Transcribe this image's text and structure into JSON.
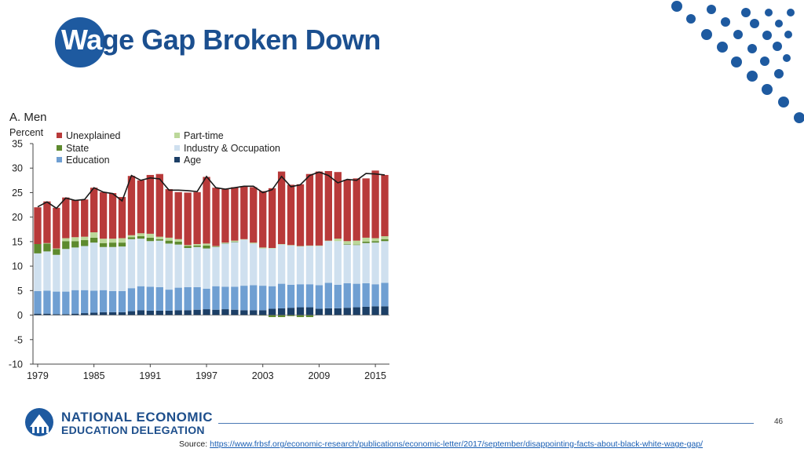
{
  "slide": {
    "title_lead": "Wa",
    "title_rest": "ge Gap Broken Down",
    "page_number": "46",
    "org_line1": "NATIONAL ECONOMIC",
    "org_line2": "EDUCATION DELEGATION",
    "source_label": "Source: ",
    "source_url": "https://www.frbsf.org/economic-research/publications/economic-letter/2017/september/disappointing-facts-about-black-white-wage-gap/"
  },
  "colors": {
    "brand": "#1e5aa0",
    "unexplained": "#b83a3a",
    "part_time": "#bcd89a",
    "state": "#5e8a2e",
    "industry_occupation": "#cfe0ef",
    "education": "#6f9fd2",
    "age": "#1c3f66",
    "total_line": "#1a1a1a"
  },
  "chart_data": {
    "type": "bar",
    "stacked": true,
    "title": "A. Men",
    "ylabel": "Percent",
    "ylim": [
      -10,
      35
    ],
    "yticks": [
      "35",
      "30",
      "25",
      "20",
      "15",
      "10",
      "5",
      "0",
      "-5",
      "-10"
    ],
    "xtick_labels": [
      "1979",
      "1985",
      "1991",
      "1997",
      "2003",
      "2009",
      "2015"
    ],
    "categories": [
      1979,
      1980,
      1981,
      1982,
      1983,
      1984,
      1985,
      1986,
      1987,
      1988,
      1989,
      1990,
      1991,
      1992,
      1993,
      1994,
      1995,
      1996,
      1997,
      1998,
      1999,
      2000,
      2001,
      2002,
      2003,
      2004,
      2005,
      2006,
      2007,
      2008,
      2009,
      2010,
      2011,
      2012,
      2013,
      2014,
      2015,
      2016
    ],
    "legend": [
      {
        "key": "unexplained",
        "label": "Unexplained"
      },
      {
        "key": "part_time",
        "label": "Part-time"
      },
      {
        "key": "state",
        "label": "State"
      },
      {
        "key": "industry_occupation",
        "label": "Industry & Occupation"
      },
      {
        "key": "education",
        "label": "Education"
      },
      {
        "key": "age",
        "label": "Age"
      }
    ],
    "series": [
      {
        "key": "age",
        "name": "Age",
        "values": [
          0.3,
          0.3,
          0.2,
          0.2,
          0.3,
          0.4,
          0.5,
          0.6,
          0.6,
          0.6,
          0.8,
          1.0,
          0.9,
          0.9,
          0.9,
          1.0,
          1.0,
          1.1,
          1.2,
          1.1,
          1.2,
          1.1,
          1.0,
          1.0,
          1.0,
          1.3,
          1.4,
          1.5,
          1.6,
          1.6,
          1.3,
          1.4,
          1.4,
          1.5,
          1.6,
          1.7,
          1.8,
          1.8
        ]
      },
      {
        "key": "education",
        "name": "Education",
        "values": [
          4.6,
          4.7,
          4.6,
          4.6,
          4.8,
          4.7,
          4.5,
          4.5,
          4.3,
          4.3,
          4.7,
          4.9,
          4.9,
          4.8,
          4.3,
          4.6,
          4.7,
          4.6,
          4.2,
          4.8,
          4.6,
          4.7,
          5.0,
          5.1,
          5.0,
          4.6,
          5.0,
          4.7,
          4.7,
          4.7,
          4.8,
          5.2,
          4.8,
          5.0,
          4.8,
          4.8,
          4.5,
          4.8
        ]
      },
      {
        "key": "industry_occupation",
        "name": "Industry & Occupation",
        "values": [
          7.7,
          8.0,
          7.5,
          8.7,
          8.7,
          9.0,
          9.8,
          8.8,
          9.0,
          9.1,
          10.0,
          9.7,
          9.3,
          9.5,
          9.4,
          8.8,
          8.0,
          8.2,
          8.2,
          8.0,
          8.8,
          9.1,
          9.4,
          8.5,
          7.6,
          7.7,
          8.0,
          8.0,
          7.7,
          7.8,
          8.0,
          8.5,
          8.9,
          7.9,
          7.9,
          8.2,
          8.5,
          8.5
        ]
      },
      {
        "key": "state",
        "name": "State",
        "values": [
          1.9,
          1.6,
          1.2,
          1.6,
          1.3,
          1.2,
          1.0,
          0.8,
          0.9,
          0.8,
          0.4,
          0.5,
          0.7,
          0.3,
          0.6,
          0.6,
          0.4,
          0.3,
          0.6,
          0.1,
          0.1,
          0.1,
          0.0,
          0.0,
          -0.1,
          -0.4,
          -0.4,
          -0.2,
          -0.4,
          -0.4,
          0.0,
          0.0,
          0.0,
          0.1,
          0.1,
          0.3,
          0.3,
          0.4
        ]
      },
      {
        "key": "part_time",
        "name": "Part-time",
        "values": [
          0.0,
          0.1,
          0.1,
          0.6,
          0.8,
          0.7,
          1.1,
          0.9,
          0.8,
          0.9,
          0.4,
          0.6,
          0.8,
          0.5,
          0.6,
          0.5,
          0.2,
          0.3,
          0.4,
          0.1,
          0.1,
          0.2,
          0.1,
          0.2,
          0.2,
          0.1,
          0.1,
          0.1,
          0.1,
          0.1,
          0.1,
          0.1,
          0.5,
          0.6,
          0.8,
          0.8,
          0.6,
          0.6
        ]
      },
      {
        "key": "unexplained",
        "name": "Unexplained",
        "values": [
          7.5,
          8.5,
          8.3,
          8.3,
          7.6,
          7.6,
          9.1,
          9.5,
          9.3,
          8.4,
          12.1,
          10.8,
          12.0,
          12.8,
          9.9,
          9.6,
          10.7,
          10.6,
          13.6,
          11.9,
          10.9,
          10.9,
          10.8,
          11.3,
          11.5,
          12.2,
          14.8,
          12.3,
          12.6,
          14.6,
          15.1,
          14.2,
          13.6,
          12.5,
          12.7,
          12.1,
          13.8,
          12.5
        ]
      }
    ],
    "total_line": [
      22.1,
      23.1,
      21.8,
      23.9,
      23.4,
      23.6,
      26.0,
      25.1,
      24.8,
      23.3,
      28.5,
      27.5,
      28.0,
      27.8,
      25.5,
      25.5,
      25.4,
      25.2,
      28.3,
      26.0,
      25.7,
      26.0,
      26.3,
      26.3,
      25.0,
      25.6,
      28.3,
      26.2,
      26.6,
      28.5,
      29.2,
      28.5,
      27.0,
      27.7,
      27.5,
      28.9,
      28.8,
      28.6
    ]
  }
}
